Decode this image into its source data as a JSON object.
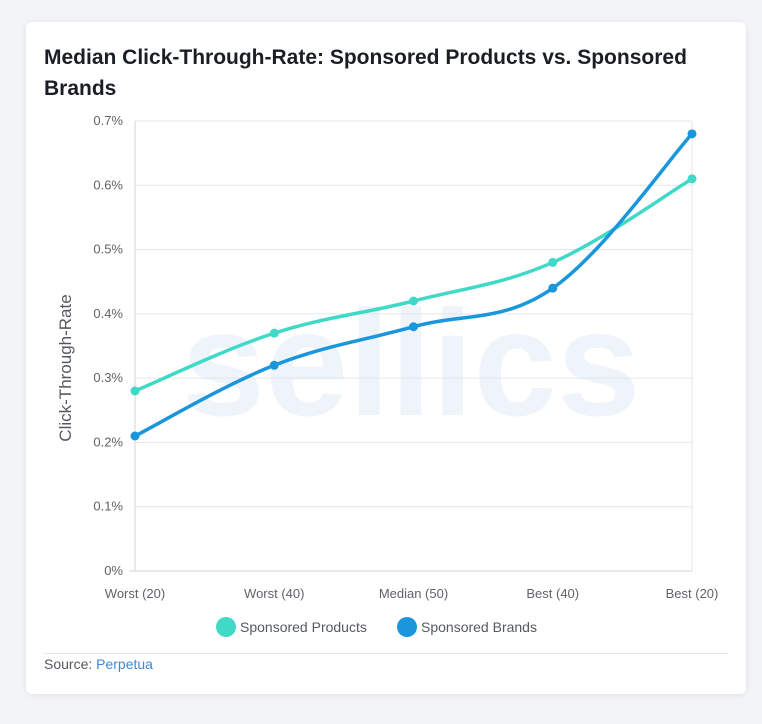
{
  "watermark": "sellics",
  "source": {
    "label": "Source:",
    "link_text": "Perpetua"
  },
  "chart_data": {
    "type": "line",
    "title": "Median Click-Through-Rate: Sponsored Products vs. Sponsored Brands",
    "xlabel": "",
    "ylabel": "Click-Through-Rate",
    "categories": [
      "Worst (20)",
      "Worst (40)",
      "Median (50)",
      "Best (40)",
      "Best (20)"
    ],
    "ylim": [
      0,
      0.7
    ],
    "y_ticks": [
      0,
      0.1,
      0.2,
      0.3,
      0.4,
      0.5,
      0.6,
      0.7
    ],
    "y_tick_labels": [
      "0%",
      "0.1%",
      "0.2%",
      "0.3%",
      "0.4%",
      "0.5%",
      "0.6%",
      "0.7%"
    ],
    "grid": true,
    "legend_position": "bottom",
    "series": [
      {
        "name": "Sponsored Products",
        "color": "#40d9c8",
        "values": [
          0.28,
          0.37,
          0.42,
          0.48,
          0.61
        ]
      },
      {
        "name": "Sponsored Brands",
        "color": "#1a96dd",
        "values": [
          0.21,
          0.32,
          0.38,
          0.44,
          0.68
        ]
      }
    ]
  }
}
